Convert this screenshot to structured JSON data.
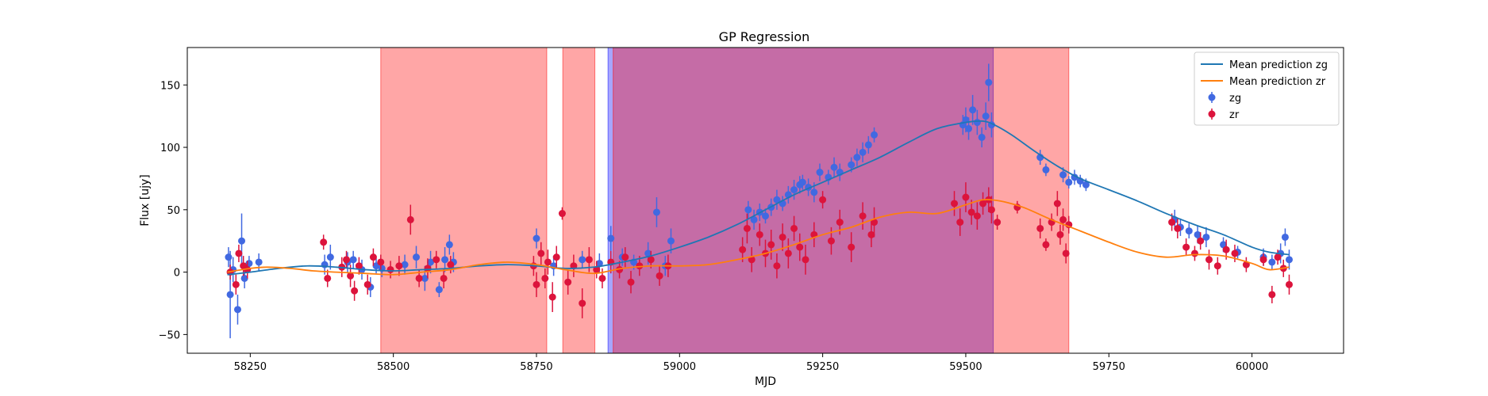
{
  "chart_data": {
    "type": "scatter",
    "title": "GP Regression",
    "xlabel": "MJD",
    "ylabel": "Flux [ujy]",
    "xlim": [
      58140,
      60160
    ],
    "ylim": [
      -65,
      180
    ],
    "xticks": [
      58250,
      58500,
      58750,
      59000,
      59250,
      59500,
      59750,
      60000
    ],
    "yticks": [
      -50,
      0,
      50,
      100,
      150
    ],
    "grid": false,
    "legend_position": "top-right",
    "legend": [
      {
        "label": "Mean prediction zg",
        "kind": "line",
        "color": "#1f77b4"
      },
      {
        "label": "Mean prediction zr",
        "kind": "line",
        "color": "#ff7f0e"
      },
      {
        "label": "zg",
        "kind": "errorbar",
        "color": "#4169e1"
      },
      {
        "label": "zr",
        "kind": "errorbar",
        "color": "#dc143c"
      }
    ],
    "shaded_regions": [
      {
        "x0": 58875,
        "x1": 59548,
        "color": "#0000ff",
        "alpha": 0.35
      },
      {
        "x0": 58478,
        "x1": 58768,
        "color": "#ff0000",
        "alpha": 0.35
      },
      {
        "x0": 58796,
        "x1": 58852,
        "color": "#ff0000",
        "alpha": 0.35
      },
      {
        "x0": 58884,
        "x1": 59680,
        "color": "#ff0000",
        "alpha": 0.35
      }
    ],
    "series": [
      {
        "name": "Mean prediction zg",
        "type": "line",
        "color": "#1f77b4",
        "x": [
          58210,
          58250,
          58300,
          58350,
          58400,
          58450,
          58500,
          58550,
          58600,
          58650,
          58700,
          58750,
          58800,
          58850,
          58900,
          58950,
          59000,
          59050,
          59100,
          59150,
          59200,
          59250,
          59300,
          59350,
          59400,
          59450,
          59500,
          59530,
          59550,
          59580,
          59620,
          59660,
          59700,
          59750,
          59800,
          59850,
          59900,
          59950,
          60000,
          60030,
          60065
        ],
        "y": [
          -2,
          0,
          3,
          5,
          4,
          2,
          1,
          2,
          3,
          5,
          6,
          5,
          3,
          4,
          8,
          13,
          20,
          28,
          38,
          50,
          62,
          72,
          82,
          92,
          104,
          115,
          120,
          121,
          118,
          110,
          97,
          85,
          75,
          66,
          57,
          47,
          38,
          30,
          20,
          16,
          14
        ]
      },
      {
        "name": "Mean prediction zr",
        "type": "line",
        "color": "#ff7f0e",
        "x": [
          58210,
          58250,
          58280,
          58320,
          58360,
          58400,
          58450,
          58500,
          58550,
          58600,
          58650,
          58700,
          58750,
          58800,
          58850,
          58900,
          58950,
          59000,
          59050,
          59100,
          59150,
          59200,
          59250,
          59300,
          59350,
          59400,
          59450,
          59500,
          59530,
          59560,
          59600,
          59650,
          59700,
          59750,
          59800,
          59850,
          59900,
          59950,
          60000,
          60030,
          60065
        ],
        "y": [
          0,
          3,
          4,
          3,
          1,
          0,
          -1,
          -2,
          0,
          2,
          6,
          8,
          6,
          2,
          -1,
          3,
          5,
          5,
          6,
          10,
          15,
          22,
          30,
          36,
          44,
          48,
          47,
          54,
          58,
          57,
          52,
          42,
          33,
          24,
          16,
          12,
          14,
          13,
          7,
          2,
          4
        ]
      },
      {
        "name": "zg",
        "type": "errorbar",
        "color": "#4169e1",
        "x": [
          58212,
          58215,
          58220,
          58228,
          58235,
          58240,
          58248,
          58265,
          58380,
          58390,
          58420,
          58430,
          58445,
          58460,
          58470,
          58480,
          58520,
          58540,
          58555,
          58565,
          58580,
          58590,
          58598,
          58605,
          58750,
          58780,
          58830,
          58860,
          58880,
          58900,
          58920,
          58945,
          58960,
          58975,
          58985,
          59120,
          59130,
          59140,
          59150,
          59160,
          59170,
          59180,
          59190,
          59200,
          59210,
          59215,
          59225,
          59235,
          59245,
          59260,
          59270,
          59280,
          59300,
          59310,
          59320,
          59330,
          59340,
          59495,
          59500,
          59505,
          59512,
          59520,
          59528,
          59535,
          59540,
          59545,
          59630,
          59640,
          59670,
          59680,
          59690,
          59700,
          59710,
          59865,
          59875,
          59890,
          59905,
          59920,
          59950,
          59975,
          60020,
          60035,
          60050,
          60058,
          60065
        ],
        "y": [
          12,
          -18,
          2,
          -30,
          25,
          -5,
          7,
          8,
          6,
          12,
          8,
          10,
          2,
          -12,
          5,
          3,
          6,
          12,
          -5,
          8,
          -14,
          10,
          22,
          8,
          27,
          5,
          10,
          7,
          27,
          12,
          8,
          15,
          48,
          5,
          25,
          50,
          42,
          48,
          45,
          52,
          58,
          55,
          62,
          66,
          70,
          72,
          68,
          64,
          80,
          76,
          84,
          80,
          86,
          92,
          96,
          102,
          110,
          118,
          122,
          115,
          130,
          120,
          108,
          125,
          152,
          118,
          92,
          82,
          78,
          72,
          76,
          73,
          70,
          42,
          36,
          33,
          30,
          28,
          22,
          16,
          12,
          8,
          15,
          28,
          10
        ],
        "err": [
          8,
          35,
          10,
          12,
          22,
          8,
          6,
          7,
          8,
          10,
          8,
          7,
          8,
          8,
          6,
          7,
          8,
          9,
          10,
          9,
          6,
          10,
          8,
          8,
          8,
          8,
          7,
          8,
          10,
          7,
          6,
          9,
          12,
          8,
          10,
          7,
          8,
          7,
          6,
          7,
          8,
          6,
          7,
          8,
          7,
          6,
          7,
          8,
          7,
          6,
          8,
          7,
          6,
          7,
          8,
          7,
          6,
          8,
          10,
          9,
          12,
          10,
          8,
          11,
          15,
          10,
          6,
          5,
          6,
          5,
          6,
          5,
          5,
          8,
          7,
          6,
          7,
          8,
          6,
          5,
          7,
          6,
          8,
          7,
          8
        ]
      },
      {
        "name": "zr",
        "type": "errorbar",
        "color": "#dc143c",
        "x": [
          58215,
          58225,
          58230,
          58238,
          58245,
          58378,
          58385,
          58410,
          58418,
          58425,
          58432,
          58440,
          58455,
          58465,
          58478,
          58495,
          58510,
          58530,
          58545,
          58560,
          58575,
          58588,
          58600,
          58745,
          58750,
          58758,
          58765,
          58770,
          58778,
          58785,
          58795,
          58805,
          58815,
          58830,
          58842,
          58855,
          58865,
          58880,
          58895,
          58905,
          58915,
          58930,
          58950,
          58965,
          58980,
          59110,
          59118,
          59126,
          59140,
          59150,
          59160,
          59170,
          59180,
          59190,
          59200,
          59210,
          59220,
          59235,
          59250,
          59265,
          59280,
          59300,
          59320,
          59335,
          59340,
          59480,
          59490,
          59500,
          59510,
          59520,
          59530,
          59540,
          59545,
          59555,
          59590,
          59630,
          59640,
          59650,
          59660,
          59665,
          59670,
          59675,
          59680,
          59860,
          59870,
          59885,
          59900,
          59910,
          59925,
          59940,
          59955,
          59970,
          59990,
          60020,
          60035,
          60045,
          60055,
          60065
        ],
        "y": [
          0,
          -10,
          15,
          5,
          2,
          24,
          -5,
          4,
          10,
          -3,
          -15,
          5,
          -10,
          12,
          8,
          2,
          5,
          42,
          -5,
          3,
          10,
          -5,
          6,
          5,
          -10,
          15,
          -5,
          8,
          -20,
          12,
          47,
          -8,
          5,
          -25,
          10,
          2,
          -5,
          8,
          2,
          12,
          -8,
          5,
          10,
          -3,
          5,
          18,
          35,
          10,
          30,
          15,
          22,
          5,
          28,
          15,
          35,
          20,
          10,
          30,
          58,
          25,
          40,
          20,
          45,
          30,
          40,
          55,
          40,
          60,
          48,
          45,
          55,
          58,
          50,
          40,
          52,
          35,
          22,
          40,
          55,
          30,
          42,
          15,
          38,
          40,
          35,
          20,
          15,
          25,
          10,
          5,
          18,
          15,
          6,
          10,
          -18,
          12,
          3,
          -10
        ],
        "err": [
          6,
          8,
          7,
          8,
          7,
          6,
          7,
          8,
          7,
          9,
          8,
          7,
          8,
          7,
          6,
          7,
          8,
          12,
          7,
          8,
          7,
          8,
          7,
          8,
          10,
          9,
          8,
          10,
          12,
          9,
          5,
          10,
          9,
          12,
          10,
          7,
          8,
          9,
          7,
          8,
          9,
          8,
          7,
          8,
          9,
          10,
          12,
          10,
          9,
          11,
          12,
          10,
          11,
          12,
          10,
          11,
          12,
          10,
          7,
          11,
          10,
          12,
          11,
          10,
          12,
          10,
          11,
          12,
          10,
          11,
          9,
          10,
          11,
          6,
          5,
          8,
          5,
          7,
          10,
          8,
          9,
          8,
          7,
          7,
          8,
          7,
          6,
          7,
          8,
          7,
          8,
          7,
          6,
          5,
          7,
          6,
          7,
          8
        ]
      }
    ]
  }
}
